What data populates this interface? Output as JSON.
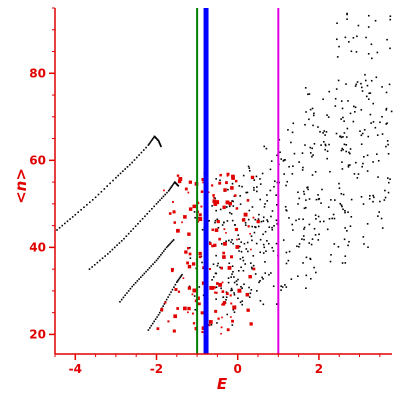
{
  "chart_data": {
    "type": "scatter",
    "xlabel": "E",
    "ylabel": "<n>",
    "xlim": [
      -4.5,
      3.8
    ],
    "ylim": [
      15.5,
      95
    ],
    "xticks": [
      -4,
      -2,
      0,
      2
    ],
    "yticks": [
      20,
      40,
      60,
      80
    ],
    "grid": false,
    "colors": {
      "axis": "#e00000",
      "scatter": "#000000",
      "highlight": "#e00000",
      "green": "#008000",
      "blue": "#0000ff",
      "magenta": "#e000e0"
    },
    "vlines": [
      {
        "x": -1.0,
        "color": "#008000"
      },
      {
        "x": -0.78,
        "color": "#0000ff"
      },
      {
        "x": 1.0,
        "color": "#e000e0"
      }
    ],
    "arcs": [
      {
        "x": [
          -4.45,
          -4.0,
          -3.5,
          -3.0,
          -2.6,
          -2.2,
          -2.05,
          -1.95,
          -1.88
        ],
        "y": [
          44,
          47.5,
          51.5,
          56,
          59.5,
          63.5,
          65.5,
          64.5,
          63
        ]
      },
      {
        "x": [
          -3.65,
          -3.2,
          -2.8,
          -2.4,
          -2.0,
          -1.7,
          -1.55,
          -1.45
        ],
        "y": [
          35,
          38.5,
          42,
          46,
          50,
          53,
          55,
          54
        ]
      },
      {
        "x": [
          -2.9,
          -2.6,
          -2.3,
          -2.0,
          -1.75,
          -1.55
        ],
        "y": [
          27.5,
          31,
          34,
          37,
          40,
          42
        ]
      },
      {
        "x": [
          -2.2,
          -1.95,
          -1.75,
          -1.5,
          -1.35
        ],
        "y": [
          21,
          24.5,
          28,
          32,
          34
        ]
      }
    ],
    "cloud": [
      {
        "x": [
          -1.2,
          0.4
        ],
        "y": [
          22,
          50
        ]
      },
      {
        "x": [
          -0.6,
          1.0
        ],
        "y": [
          26,
          56
        ]
      },
      {
        "x": [
          0.0,
          2.0
        ],
        "y": [
          30,
          64
        ]
      },
      {
        "x": [
          0.8,
          2.8
        ],
        "y": [
          36,
          72
        ]
      },
      {
        "x": [
          1.6,
          3.8
        ],
        "y": [
          40,
          80
        ]
      },
      {
        "x": [
          2.4,
          3.8
        ],
        "y": [
          48,
          95
        ]
      }
    ],
    "highlight_region": {
      "x": [
        -2.0,
        0.3
      ],
      "y": [
        20,
        57
      ]
    }
  }
}
